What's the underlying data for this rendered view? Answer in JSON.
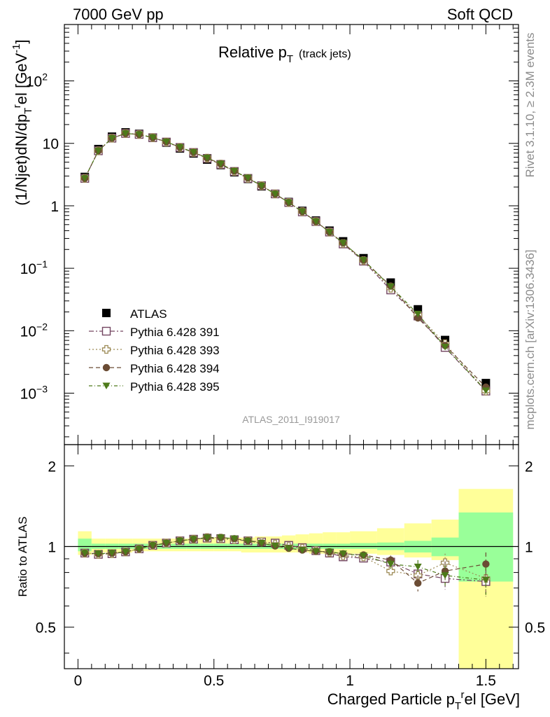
{
  "header": {
    "left_title": "7000 GeV pp",
    "right_title": "Soft QCD"
  },
  "side_labels": {
    "rivet": "Rivet 3.1.10, ≥ 2.3M events",
    "mcplots": "mcplots.cern.ch [arXiv:1306.3436]"
  },
  "analysis_id": "ATLAS_2011_I919017",
  "colors": {
    "atlas": "#000000",
    "p391": "#734561",
    "p393": "#9c8a55",
    "p394": "#6b4c34",
    "p395": "#4d7a1a",
    "band_inner": "#99ff99",
    "band_outer": "#ffff99"
  },
  "chart_data": [
    {
      "type": "scatter",
      "panel": "main",
      "title": "Relative p",
      "title_sub": "T",
      "title_note": "(track jets)",
      "ylabel_parts": [
        "(1/Njet)dN/dp",
        "T",
        "r",
        "el [GeV",
        "-1",
        "]"
      ],
      "yscale": "log",
      "ylim": [
        0.00015,
        800
      ],
      "xlim": [
        -0.05,
        1.62
      ],
      "ytick_labels": [
        "10^-3",
        "10^-2",
        "10^-1",
        "1",
        "10",
        "10^2"
      ],
      "legend_position": "bottom-left",
      "x": [
        0.025,
        0.075,
        0.125,
        0.175,
        0.225,
        0.275,
        0.325,
        0.375,
        0.425,
        0.475,
        0.525,
        0.575,
        0.625,
        0.675,
        0.725,
        0.775,
        0.825,
        0.875,
        0.925,
        0.975,
        1.05,
        1.15,
        1.25,
        1.35,
        1.5
      ],
      "series": [
        {
          "name": "ATLAS",
          "marker": "square-filled",
          "color_key": "atlas",
          "values": [
            2.9,
            8.1,
            12.8,
            15.0,
            14.2,
            12.3,
            10.3,
            8.3,
            6.9,
            5.5,
            4.5,
            3.45,
            2.7,
            2.05,
            1.55,
            1.15,
            0.83,
            0.58,
            0.4,
            0.27,
            0.145,
            0.059,
            0.022,
            0.0071,
            0.00145
          ]
        },
        {
          "name": "Pythia 6.428 391",
          "marker": "square-open",
          "color_key": "p391",
          "values": [
            2.75,
            7.6,
            12.1,
            14.4,
            13.9,
            12.35,
            10.5,
            8.6,
            7.15,
            5.75,
            4.6,
            3.55,
            2.75,
            2.1,
            1.55,
            1.13,
            0.8,
            0.56,
            0.38,
            0.245,
            0.13,
            0.045,
            0.0172,
            0.0054,
            0.00108
          ]
        },
        {
          "name": "Pythia 6.428 393",
          "marker": "cross-open",
          "color_key": "p393",
          "values": [
            2.75,
            7.6,
            12.1,
            14.4,
            13.9,
            12.35,
            10.5,
            8.6,
            7.15,
            5.8,
            4.65,
            3.55,
            2.75,
            2.1,
            1.55,
            1.13,
            0.81,
            0.56,
            0.38,
            0.25,
            0.133,
            0.048,
            0.0178,
            0.0062,
            0.00108
          ]
        },
        {
          "name": "Pythia 6.428 394",
          "marker": "circle-filled",
          "color_key": "p394",
          "values": [
            2.75,
            7.6,
            12.1,
            14.4,
            13.9,
            12.4,
            10.6,
            8.65,
            7.2,
            5.85,
            4.7,
            3.6,
            2.8,
            2.1,
            1.55,
            1.13,
            0.81,
            0.56,
            0.38,
            0.255,
            0.135,
            0.052,
            0.016,
            0.0058,
            0.00125
          ]
        },
        {
          "name": "Pythia 6.428 395",
          "marker": "triangle-down-filled",
          "color_key": "p395",
          "values": [
            2.75,
            7.6,
            12.1,
            14.4,
            13.9,
            12.4,
            10.6,
            8.65,
            7.2,
            5.85,
            4.7,
            3.6,
            2.8,
            2.1,
            1.55,
            1.13,
            0.81,
            0.56,
            0.38,
            0.255,
            0.135,
            0.051,
            0.0185,
            0.0055,
            0.0011
          ]
        }
      ]
    },
    {
      "type": "scatter",
      "panel": "ratio",
      "ylabel": "Ratio to ATLAS",
      "yscale": "log",
      "ylim": [
        0.35,
        2.4
      ],
      "xlim": [
        -0.05,
        1.62
      ],
      "xlabel_parts": [
        "Charged Particle p",
        "T",
        "r",
        "el [GeV]"
      ],
      "xtick_labels": [
        "0",
        "0.5",
        "1",
        "1.5"
      ],
      "ytick_labels": [
        "0.5",
        "1",
        "2"
      ],
      "x": [
        0.025,
        0.075,
        0.125,
        0.175,
        0.225,
        0.275,
        0.325,
        0.375,
        0.425,
        0.475,
        0.525,
        0.575,
        0.625,
        0.675,
        0.725,
        0.775,
        0.825,
        0.875,
        0.925,
        0.975,
        1.05,
        1.15,
        1.25,
        1.35,
        1.5
      ],
      "bands": {
        "edges": [
          0,
          0.05,
          0.1,
          0.15,
          0.2,
          0.25,
          0.3,
          0.35,
          0.4,
          0.45,
          0.5,
          0.55,
          0.6,
          0.65,
          0.7,
          0.75,
          0.8,
          0.85,
          0.9,
          0.95,
          1.0,
          1.1,
          1.2,
          1.3,
          1.4,
          1.6
        ],
        "inner_low": [
          0.96,
          0.98,
          0.98,
          0.98,
          0.98,
          0.98,
          0.98,
          0.98,
          0.98,
          0.98,
          0.98,
          0.98,
          0.98,
          0.98,
          0.98,
          0.98,
          0.98,
          0.98,
          0.98,
          0.98,
          0.98,
          0.97,
          0.95,
          0.92,
          0.74
        ],
        "inner_high": [
          1.07,
          1.025,
          1.025,
          1.025,
          1.025,
          1.025,
          1.025,
          1.025,
          1.025,
          1.025,
          1.025,
          1.025,
          1.025,
          1.025,
          1.025,
          1.025,
          1.025,
          1.025,
          1.025,
          1.025,
          1.03,
          1.035,
          1.05,
          1.08,
          1.34
        ],
        "outer_low": [
          0.93,
          0.95,
          0.95,
          0.95,
          0.96,
          0.96,
          0.96,
          0.96,
          0.96,
          0.96,
          0.96,
          0.96,
          0.95,
          0.95,
          0.95,
          0.95,
          0.95,
          0.94,
          0.94,
          0.94,
          0.94,
          0.93,
          0.91,
          0.89,
          0.35
        ],
        "outer_high": [
          1.14,
          1.07,
          1.07,
          1.07,
          1.07,
          1.07,
          1.07,
          1.07,
          1.07,
          1.08,
          1.08,
          1.08,
          1.08,
          1.09,
          1.09,
          1.1,
          1.11,
          1.12,
          1.13,
          1.13,
          1.14,
          1.17,
          1.22,
          1.26,
          1.64
        ]
      },
      "series": [
        {
          "name": "Pythia 6.428 391",
          "marker": "square-open",
          "color_key": "p391",
          "values": [
            0.945,
            0.935,
            0.94,
            0.955,
            0.98,
            1.01,
            1.03,
            1.05,
            1.065,
            1.075,
            1.07,
            1.06,
            1.05,
            1.04,
            1.03,
            1.01,
            0.99,
            0.965,
            0.945,
            0.915,
            0.905,
            0.875,
            0.79,
            0.76,
            0.74
          ],
          "err": [
            0.01,
            0.01,
            0.01,
            0.01,
            0.01,
            0.01,
            0.01,
            0.01,
            0.01,
            0.01,
            0.01,
            0.01,
            0.01,
            0.01,
            0.01,
            0.012,
            0.012,
            0.015,
            0.015,
            0.02,
            0.025,
            0.035,
            0.05,
            0.07,
            0.09
          ]
        },
        {
          "name": "Pythia 6.428 393",
          "marker": "cross-open",
          "color_key": "p393",
          "values": [
            0.945,
            0.935,
            0.94,
            0.955,
            0.98,
            1.01,
            1.03,
            1.05,
            1.065,
            1.08,
            1.075,
            1.06,
            1.05,
            1.04,
            1.02,
            1.0,
            0.985,
            0.965,
            0.95,
            0.925,
            0.915,
            0.81,
            0.78,
            0.87,
            0.76
          ],
          "err": [
            0.01,
            0.01,
            0.01,
            0.01,
            0.01,
            0.01,
            0.01,
            0.01,
            0.01,
            0.01,
            0.01,
            0.01,
            0.01,
            0.01,
            0.01,
            0.012,
            0.012,
            0.015,
            0.015,
            0.02,
            0.025,
            0.035,
            0.05,
            0.07,
            0.09
          ]
        },
        {
          "name": "Pythia 6.428 394",
          "marker": "circle-filled",
          "color_key": "p394",
          "values": [
            0.945,
            0.94,
            0.945,
            0.955,
            0.98,
            1.01,
            1.03,
            1.05,
            1.065,
            1.08,
            1.08,
            1.07,
            1.05,
            1.03,
            1.005,
            0.985,
            0.97,
            0.96,
            0.955,
            0.94,
            0.93,
            0.89,
            0.73,
            0.81,
            0.86
          ],
          "err": [
            0.01,
            0.01,
            0.01,
            0.01,
            0.01,
            0.01,
            0.01,
            0.01,
            0.01,
            0.01,
            0.01,
            0.01,
            0.01,
            0.01,
            0.01,
            0.012,
            0.012,
            0.015,
            0.015,
            0.02,
            0.025,
            0.035,
            0.05,
            0.07,
            0.09
          ]
        },
        {
          "name": "Pythia 6.428 395",
          "marker": "triangle-down-filled",
          "color_key": "p395",
          "values": [
            0.945,
            0.94,
            0.945,
            0.955,
            0.98,
            1.01,
            1.03,
            1.05,
            1.065,
            1.08,
            1.08,
            1.07,
            1.05,
            1.03,
            1.005,
            0.985,
            0.97,
            0.96,
            0.955,
            0.94,
            0.925,
            0.86,
            0.84,
            0.78,
            0.75
          ],
          "err": [
            0.01,
            0.01,
            0.01,
            0.01,
            0.01,
            0.01,
            0.01,
            0.01,
            0.01,
            0.01,
            0.01,
            0.01,
            0.01,
            0.01,
            0.01,
            0.012,
            0.012,
            0.015,
            0.015,
            0.02,
            0.025,
            0.035,
            0.05,
            0.07,
            0.09
          ]
        }
      ]
    }
  ]
}
